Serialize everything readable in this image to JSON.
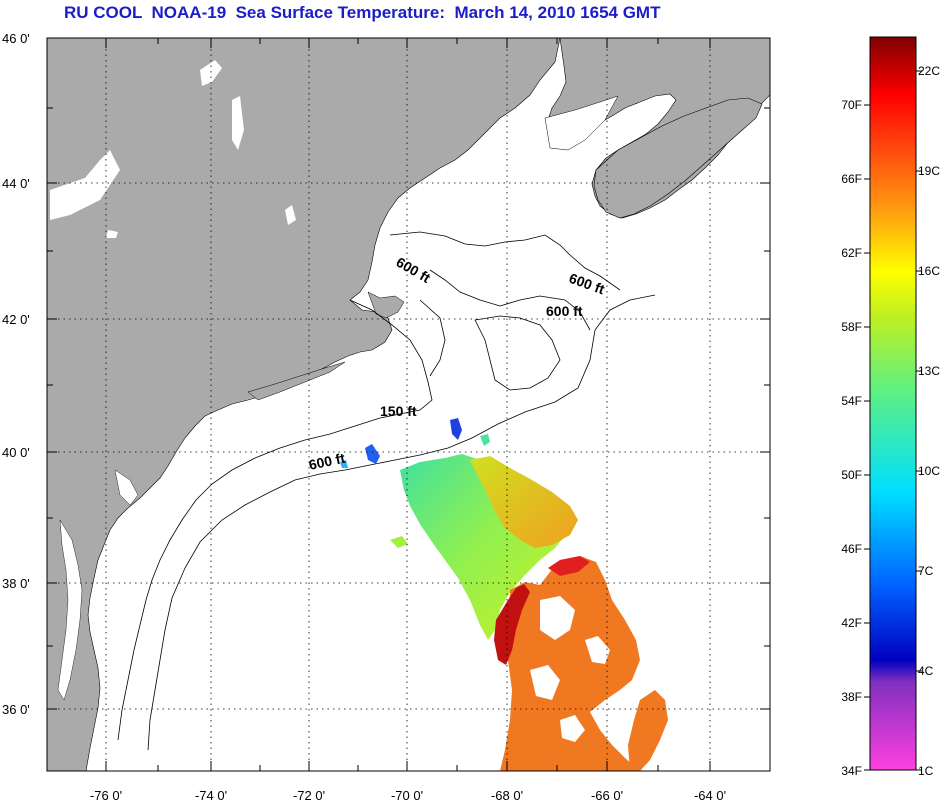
{
  "title": "RU COOL  NOAA-19  Sea Surface Temperature:  March 14, 2010 1654 GMT",
  "map": {
    "lat_labels": [
      "46 0'",
      "44 0'",
      "42 0'",
      "40 0'",
      "38 0'",
      "36 0'"
    ],
    "lon_labels": [
      "-76 0'",
      "-74 0'",
      "-72 0'",
      "-70 0'",
      "-68 0'",
      "-66 0'",
      "-64 0'"
    ],
    "contour_labels": [
      "600 ft",
      "600 ft",
      "600 ft",
      "150 ft",
      "600 ft"
    ],
    "colors": {
      "land": "#aaaaaa",
      "ocean": "#ffffff",
      "grid": "#000000"
    }
  },
  "colorbar": {
    "fahrenheit_labels": [
      "70F",
      "66F",
      "62F",
      "58F",
      "54F",
      "50F",
      "46F",
      "42F",
      "38F",
      "34F"
    ],
    "celsius_labels": [
      "22C",
      "19C",
      "16C",
      "13C",
      "10C",
      "7C",
      "4C",
      "1C"
    ],
    "range_f": [
      34,
      74
    ],
    "range_c": [
      1,
      23
    ]
  }
}
